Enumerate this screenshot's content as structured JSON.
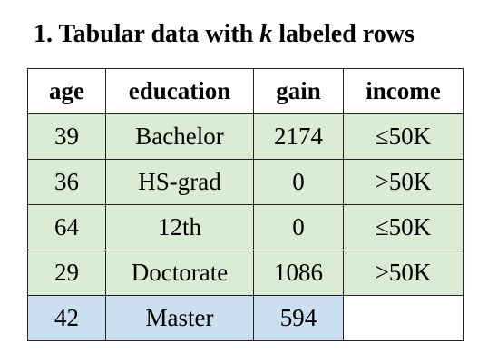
{
  "title": {
    "prefix": "1. Tabular data with ",
    "k": "k",
    "suffix": " labeled rows"
  },
  "table": {
    "columns": [
      "age",
      "education",
      "gain",
      "income"
    ],
    "rows": [
      {
        "cells": [
          "39",
          "Bachelor",
          "2174",
          "≤50K"
        ],
        "labeled": true
      },
      {
        "cells": [
          "36",
          "HS-grad",
          "0",
          ">50K"
        ],
        "labeled": true
      },
      {
        "cells": [
          "64",
          "12th",
          "0",
          "≤50K"
        ],
        "labeled": true
      },
      {
        "cells": [
          "29",
          "Doctorate",
          "1086",
          ">50K"
        ],
        "labeled": true
      },
      {
        "cells": [
          "42",
          "Master",
          "594",
          ""
        ],
        "labeled": false
      }
    ],
    "colors": {
      "labeled_row": "#dbecd4",
      "unlabeled_row": "#ccdff0",
      "empty_cell": "#ffffff"
    }
  }
}
